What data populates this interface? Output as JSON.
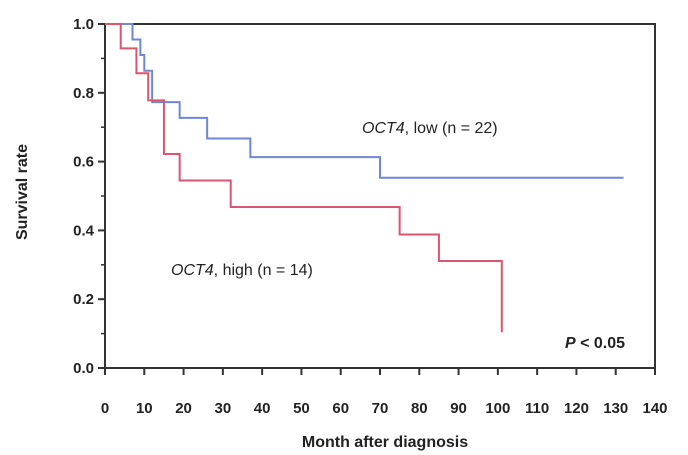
{
  "chart_data": {
    "type": "line",
    "title": "",
    "xlabel": "Month after diagnosis",
    "ylabel": "Survival rate",
    "xlim": [
      0,
      140
    ],
    "ylim": [
      0,
      1.0
    ],
    "x_ticks": [
      0,
      10,
      20,
      30,
      40,
      50,
      60,
      70,
      80,
      90,
      100,
      110,
      120,
      130,
      140
    ],
    "y_ticks": [
      0.0,
      0.2,
      0.4,
      0.6,
      0.8,
      1.0
    ],
    "x_tick_labels": [
      "0",
      "10",
      "20",
      "30",
      "40",
      "50",
      "60",
      "70",
      "80",
      "90",
      "100",
      "110",
      "120",
      "130",
      "140"
    ],
    "y_tick_labels": [
      "0.0",
      "0.2",
      "0.4",
      "0.6",
      "0.8",
      "1.0"
    ],
    "grid": false,
    "step": true,
    "series": [
      {
        "name": "low",
        "color": "#6f86d6",
        "x": [
          0,
          4,
          7,
          9,
          10,
          12,
          19,
          26,
          37,
          70,
          132
        ],
        "y": [
          1.0,
          1.0,
          0.955,
          0.91,
          0.864,
          0.773,
          0.727,
          0.667,
          0.613,
          0.553,
          0.553
        ]
      },
      {
        "name": "high",
        "color": "#d9566e",
        "x": [
          0,
          4,
          8,
          11,
          15,
          19,
          32,
          75,
          85,
          101
        ],
        "y": [
          1.0,
          0.929,
          0.857,
          0.778,
          0.622,
          0.545,
          0.468,
          0.388,
          0.311,
          0.104
        ]
      }
    ],
    "annotations": [
      {
        "id": "low",
        "gene": "OCT4",
        "suffix": ", low (n = 22)"
      },
      {
        "id": "high",
        "gene": "OCT4",
        "suffix": ", high (n = 14)"
      },
      {
        "id": "pvalue",
        "symbol": "P",
        "suffix": " < 0.05"
      }
    ]
  }
}
